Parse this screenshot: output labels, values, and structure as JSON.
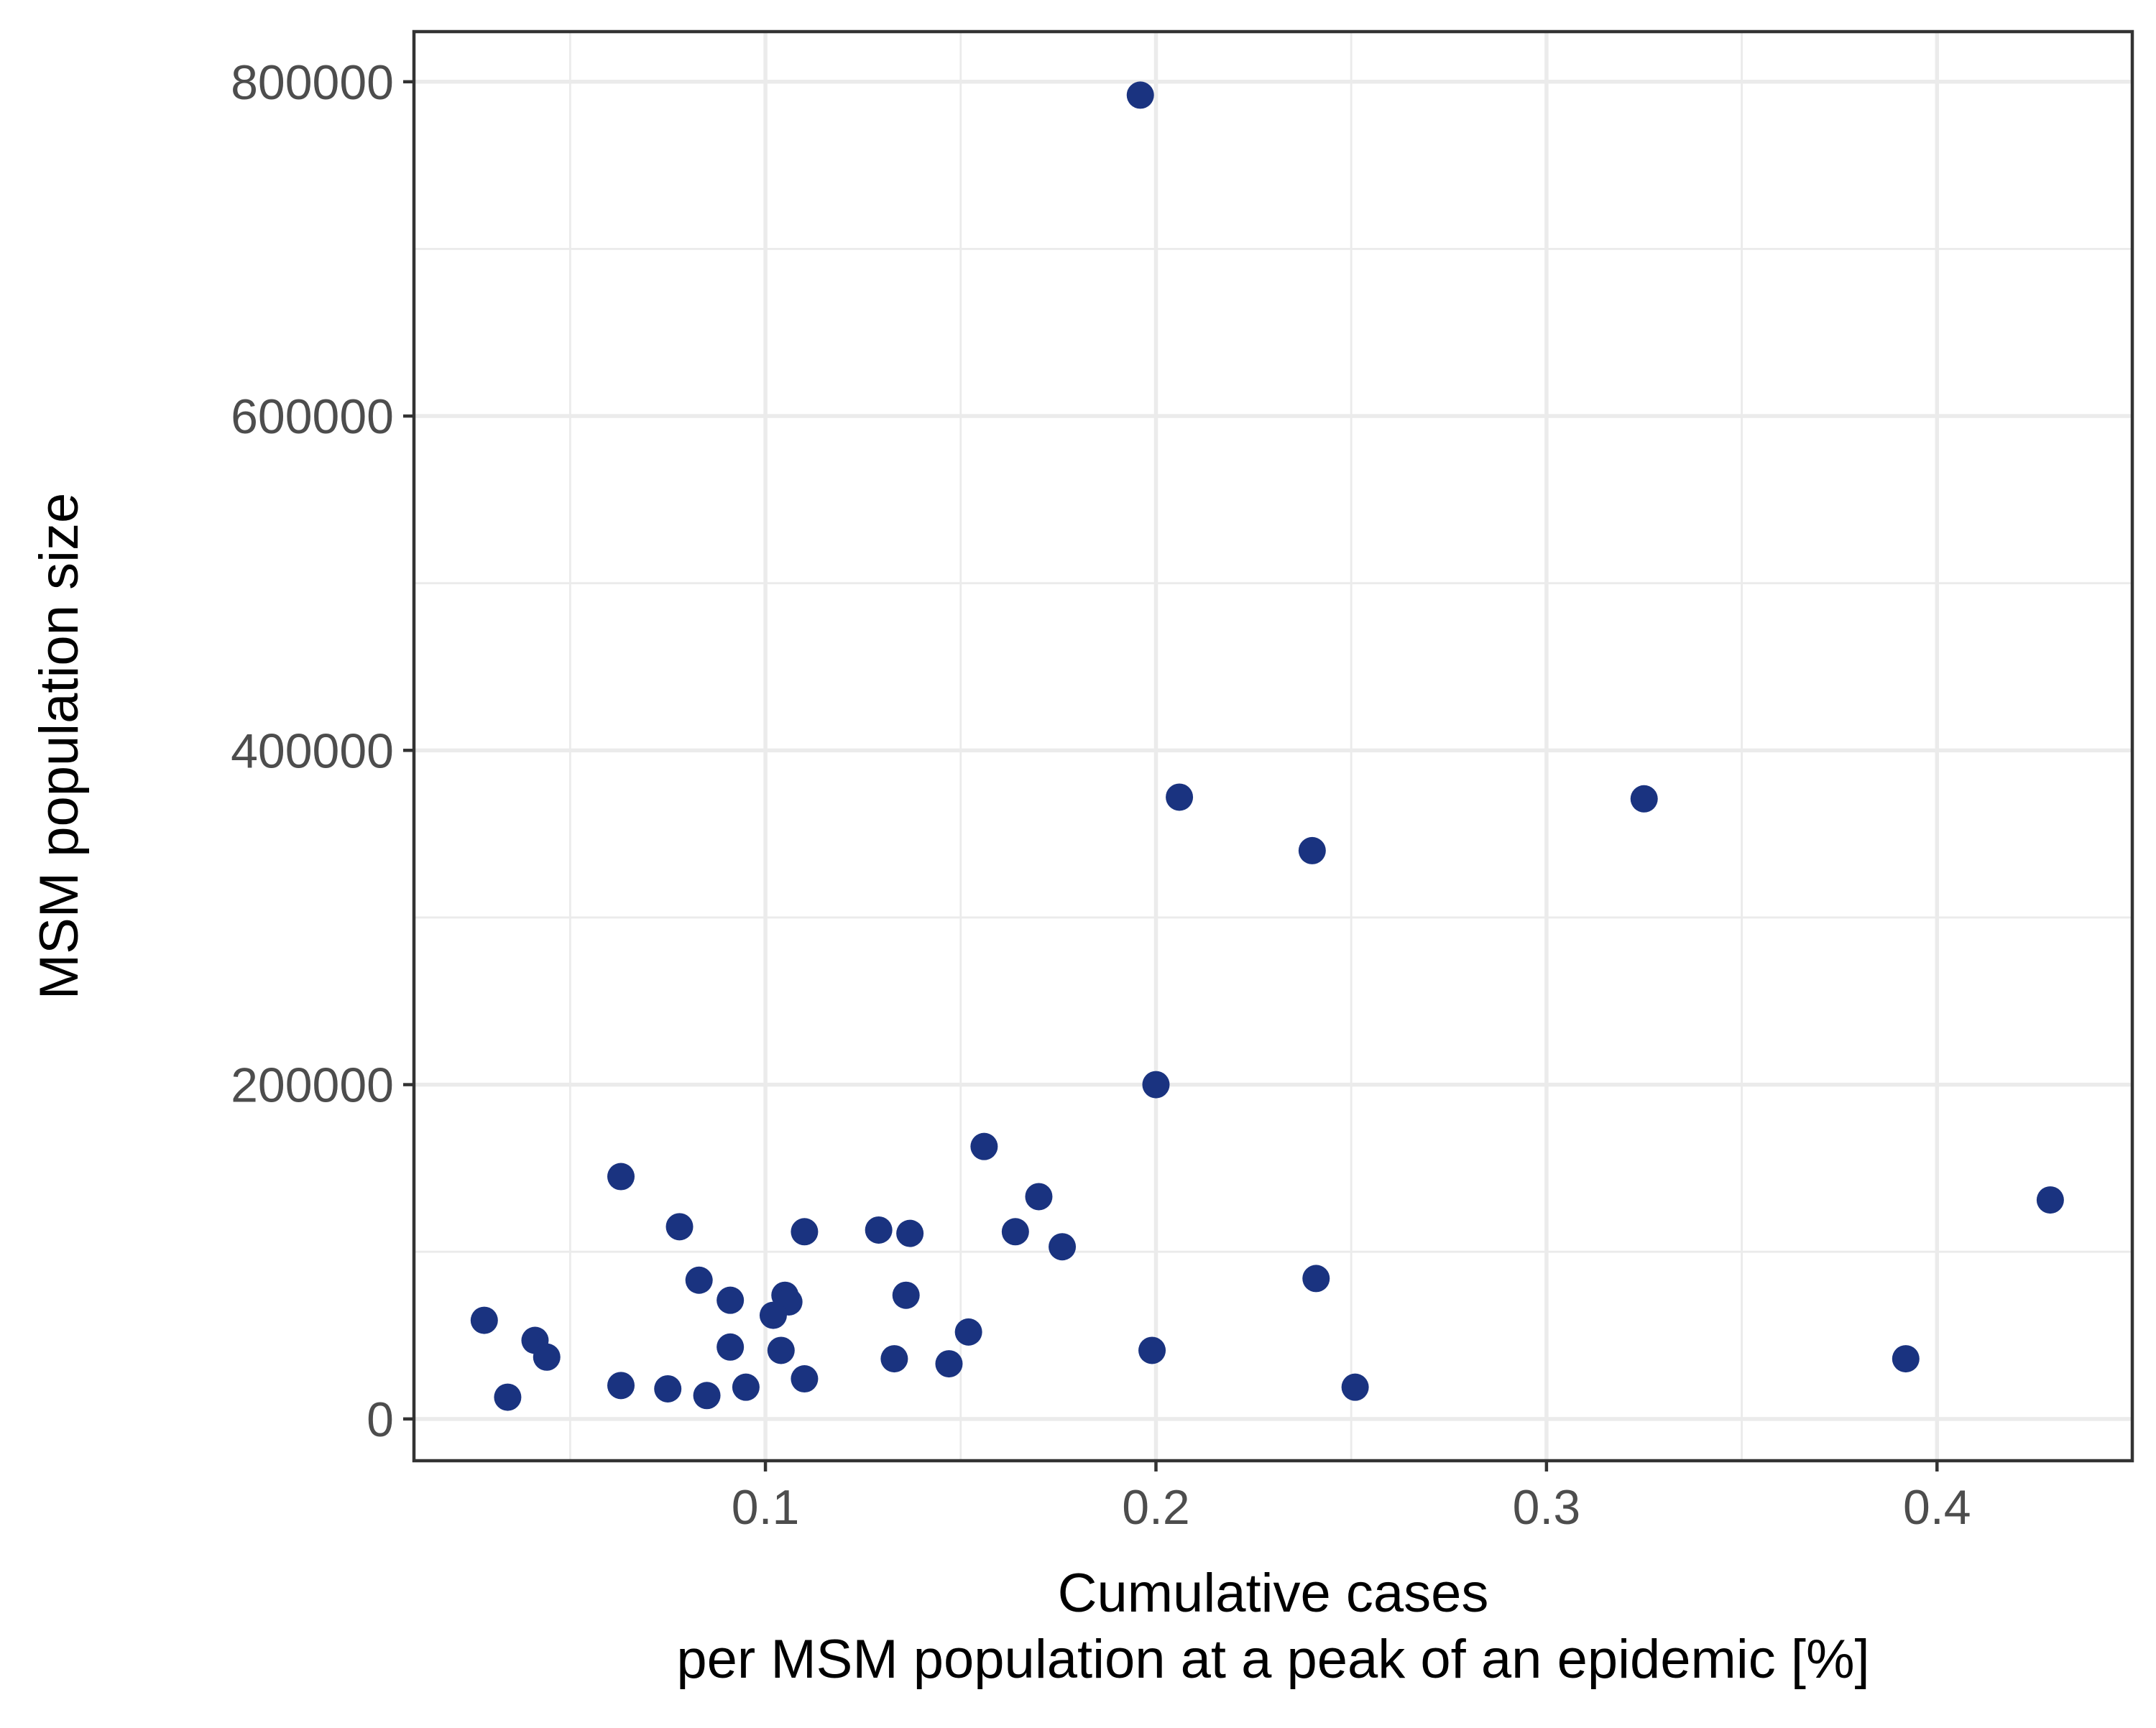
{
  "chart_data": {
    "type": "scatter",
    "xlabel_lines": [
      "Cumulative cases",
      "per MSM population at a peak of an epidemic [%]"
    ],
    "ylabel": "MSM population size",
    "xlim": [
      0.01,
      0.45
    ],
    "ylim": [
      -25000,
      830000
    ],
    "x_ticks": [
      0.1,
      0.2,
      0.3,
      0.4
    ],
    "x_tick_labels": [
      "0.1",
      "0.2",
      "0.3",
      "0.4"
    ],
    "y_ticks": [
      0,
      200000,
      400000,
      600000,
      800000
    ],
    "y_tick_labels": [
      "0",
      "200000",
      "400000",
      "600000",
      "800000"
    ],
    "x_minor": [
      0.05,
      0.15,
      0.25,
      0.35
    ],
    "y_minor": [
      100000,
      300000,
      500000,
      700000
    ],
    "grid": true,
    "point_color": "#1a3380",
    "points": [
      {
        "x": 0.196,
        "y": 792000
      },
      {
        "x": 0.206,
        "y": 372000
      },
      {
        "x": 0.325,
        "y": 371000
      },
      {
        "x": 0.24,
        "y": 340000
      },
      {
        "x": 0.2,
        "y": 200000
      },
      {
        "x": 0.156,
        "y": 163000
      },
      {
        "x": 0.063,
        "y": 145000
      },
      {
        "x": 0.17,
        "y": 133000
      },
      {
        "x": 0.429,
        "y": 131000
      },
      {
        "x": 0.078,
        "y": 115000
      },
      {
        "x": 0.11,
        "y": 112000
      },
      {
        "x": 0.129,
        "y": 113000
      },
      {
        "x": 0.137,
        "y": 111000
      },
      {
        "x": 0.164,
        "y": 112000
      },
      {
        "x": 0.176,
        "y": 103000
      },
      {
        "x": 0.083,
        "y": 83000
      },
      {
        "x": 0.241,
        "y": 84000
      },
      {
        "x": 0.091,
        "y": 71000
      },
      {
        "x": 0.105,
        "y": 74000
      },
      {
        "x": 0.106,
        "y": 70000
      },
      {
        "x": 0.136,
        "y": 74000
      },
      {
        "x": 0.102,
        "y": 62000
      },
      {
        "x": 0.028,
        "y": 59000
      },
      {
        "x": 0.152,
        "y": 52000
      },
      {
        "x": 0.041,
        "y": 47000
      },
      {
        "x": 0.091,
        "y": 43000
      },
      {
        "x": 0.104,
        "y": 41000
      },
      {
        "x": 0.199,
        "y": 41000
      },
      {
        "x": 0.044,
        "y": 37000
      },
      {
        "x": 0.133,
        "y": 36000
      },
      {
        "x": 0.147,
        "y": 33000
      },
      {
        "x": 0.392,
        "y": 36000
      },
      {
        "x": 0.11,
        "y": 24000
      },
      {
        "x": 0.063,
        "y": 20000
      },
      {
        "x": 0.075,
        "y": 18000
      },
      {
        "x": 0.095,
        "y": 19000
      },
      {
        "x": 0.251,
        "y": 19000
      },
      {
        "x": 0.085,
        "y": 14000
      },
      {
        "x": 0.034,
        "y": 13000
      }
    ]
  }
}
